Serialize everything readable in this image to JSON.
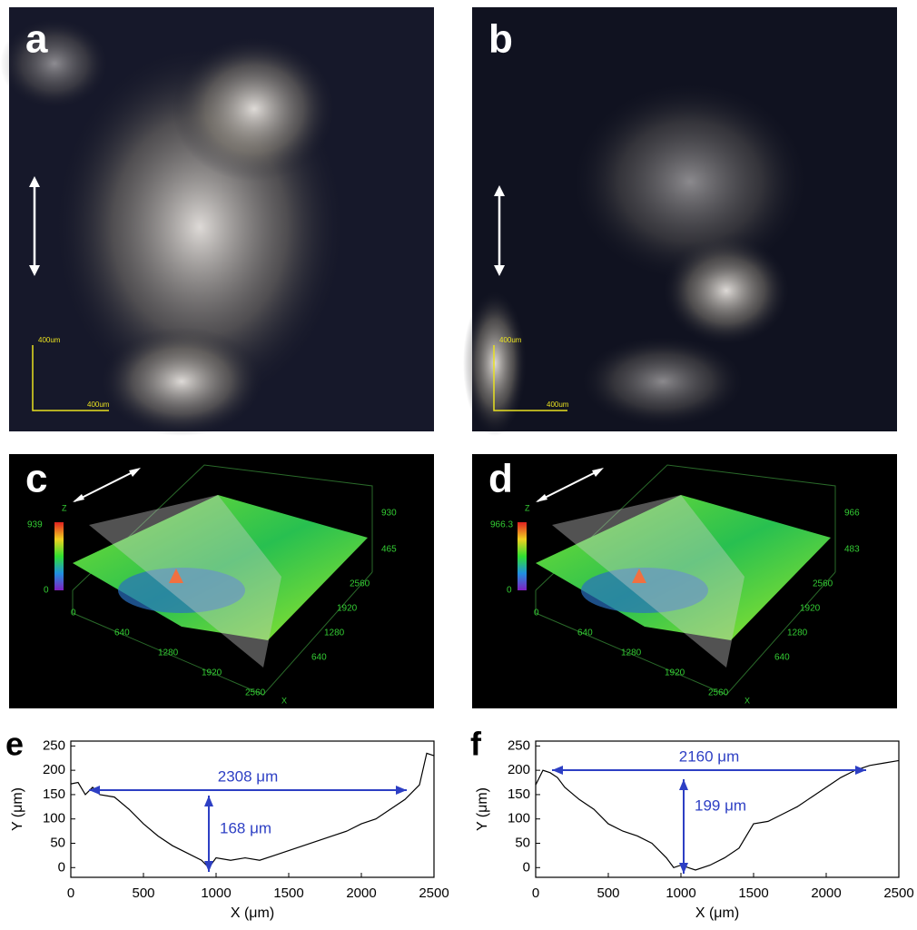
{
  "panels": [
    {
      "label": "a",
      "scale_label": "400um"
    },
    {
      "label": "b",
      "scale_label": "400um"
    },
    {
      "label": "c",
      "colorbar_max": "939",
      "z_ticks": [
        "930",
        "465"
      ],
      "front_ticks": [
        "0",
        "640",
        "1280",
        "1920",
        "2560"
      ],
      "side_ticks": [
        "2560",
        "1920",
        "1280",
        "640"
      ],
      "x_axis": "X",
      "z_axis": "Z",
      "zero": "0"
    },
    {
      "label": "d",
      "colorbar_max": "966.3",
      "z_ticks": [
        "966",
        "483"
      ],
      "front_ticks": [
        "0",
        "640",
        "1280",
        "1920",
        "2560"
      ],
      "side_ticks": [
        "2560",
        "1920",
        "1280",
        "640"
      ],
      "x_axis": "X",
      "z_axis": "Z",
      "zero": "0"
    }
  ],
  "chart_data": [
    {
      "type": "line",
      "label": "e",
      "xlabel": "X (μm)",
      "ylabel": "Y (μm)",
      "x": [
        0,
        50,
        100,
        150,
        200,
        300,
        400,
        500,
        600,
        700,
        800,
        900,
        950,
        1000,
        1100,
        1200,
        1300,
        1400,
        1500,
        1600,
        1700,
        1800,
        1900,
        2000,
        2100,
        2200,
        2300,
        2400,
        2450,
        2500
      ],
      "series": [
        {
          "color": "#000000",
          "values": [
            172,
            175,
            150,
            165,
            150,
            145,
            120,
            90,
            65,
            45,
            30,
            15,
            0,
            20,
            15,
            20,
            15,
            25,
            35,
            45,
            55,
            65,
            75,
            90,
            100,
            120,
            140,
            170,
            235,
            230
          ]
        }
      ],
      "xlim": [
        0,
        2500
      ],
      "ylim": [
        -20,
        260
      ],
      "xticks": [
        0,
        500,
        1000,
        1500,
        2000,
        2500
      ],
      "yticks": [
        0,
        50,
        100,
        150,
        200,
        250
      ],
      "annotations": [
        "2308 μm",
        "168 μm"
      ],
      "annotation_color": "#2d3fc4"
    },
    {
      "type": "line",
      "label": "f",
      "xlabel": "X (μm)",
      "ylabel": "Y (μm)",
      "x": [
        0,
        50,
        100,
        150,
        200,
        300,
        400,
        500,
        600,
        700,
        800,
        900,
        950,
        1000,
        1100,
        1200,
        1300,
        1400,
        1500,
        1600,
        1700,
        1800,
        1900,
        2000,
        2100,
        2200,
        2300,
        2400,
        2500
      ],
      "series": [
        {
          "color": "#000000",
          "values": [
            170,
            200,
            195,
            185,
            165,
            140,
            120,
            90,
            75,
            65,
            50,
            20,
            0,
            5,
            -5,
            5,
            20,
            40,
            90,
            95,
            110,
            125,
            145,
            165,
            185,
            200,
            210,
            215,
            220
          ]
        }
      ],
      "xlim": [
        0,
        2500
      ],
      "ylim": [
        -20,
        260
      ],
      "xticks": [
        0,
        500,
        1000,
        1500,
        2000,
        2500
      ],
      "yticks": [
        0,
        50,
        100,
        150,
        200,
        250
      ],
      "annotations": [
        "2160 μm",
        "199 μm"
      ],
      "annotation_color": "#2d3fc4"
    }
  ]
}
